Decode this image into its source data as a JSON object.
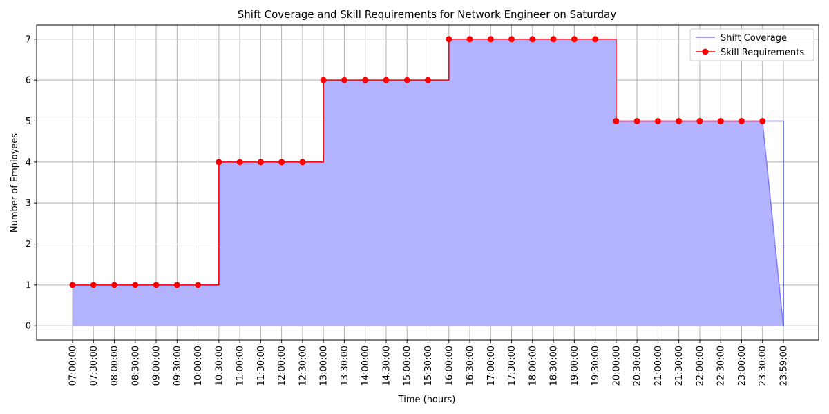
{
  "chart_data": {
    "type": "area",
    "title": "Shift Coverage and Skill Requirements for Network Engineer on Saturday",
    "xlabel": "Time (hours)",
    "ylabel": "Number of Employees",
    "x_ticks": [
      "07:00:00",
      "07:30:00",
      "08:00:00",
      "08:30:00",
      "09:00:00",
      "09:30:00",
      "10:00:00",
      "10:30:00",
      "11:00:00",
      "11:30:00",
      "12:00:00",
      "12:30:00",
      "13:00:00",
      "13:30:00",
      "14:00:00",
      "14:30:00",
      "15:00:00",
      "15:30:00",
      "16:00:00",
      "16:30:00",
      "17:00:00",
      "17:30:00",
      "18:00:00",
      "18:30:00",
      "19:00:00",
      "19:30:00",
      "20:00:00",
      "20:30:00",
      "21:00:00",
      "21:30:00",
      "22:00:00",
      "22:30:00",
      "23:00:00",
      "23:30:00",
      "23:59:00"
    ],
    "y_ticks": [
      0,
      1,
      2,
      3,
      4,
      5,
      6,
      7
    ],
    "ylim": [
      -0.35,
      7.35
    ],
    "grid": true,
    "legend_position": "top-right",
    "series": [
      {
        "name": "Shift Coverage",
        "kind": "filled-step-area",
        "color": "#0000ff",
        "fill_color": "#b2b2ff",
        "x": [
          "07:00:00",
          "07:30:00",
          "08:00:00",
          "08:30:00",
          "09:00:00",
          "09:30:00",
          "10:00:00",
          "10:30:00",
          "11:00:00",
          "11:30:00",
          "12:00:00",
          "12:30:00",
          "13:00:00",
          "13:30:00",
          "14:00:00",
          "14:30:00",
          "15:00:00",
          "15:30:00",
          "16:00:00",
          "16:30:00",
          "17:00:00",
          "17:30:00",
          "18:00:00",
          "18:30:00",
          "19:00:00",
          "19:30:00",
          "20:00:00",
          "20:30:00",
          "21:00:00",
          "21:30:00",
          "22:00:00",
          "22:30:00",
          "23:00:00",
          "23:30:00",
          "23:59:00"
        ],
        "values": [
          1,
          1,
          1,
          1,
          1,
          1,
          1,
          4,
          4,
          4,
          4,
          4,
          6,
          6,
          6,
          6,
          6,
          6,
          7,
          7,
          7,
          7,
          7,
          7,
          7,
          7,
          5,
          5,
          5,
          5,
          5,
          5,
          5,
          5,
          0
        ]
      },
      {
        "name": "Skill Requirements",
        "kind": "step-line-markers",
        "color": "#ff0000",
        "x": [
          "07:00:00",
          "07:30:00",
          "08:00:00",
          "08:30:00",
          "09:00:00",
          "09:30:00",
          "10:00:00",
          "10:30:00",
          "11:00:00",
          "11:30:00",
          "12:00:00",
          "12:30:00",
          "13:00:00",
          "13:30:00",
          "14:00:00",
          "14:30:00",
          "15:00:00",
          "15:30:00",
          "16:00:00",
          "16:30:00",
          "17:00:00",
          "17:30:00",
          "18:00:00",
          "18:30:00",
          "19:00:00",
          "19:30:00",
          "20:00:00",
          "20:30:00",
          "21:00:00",
          "21:30:00",
          "22:00:00",
          "22:30:00",
          "23:00:00",
          "23:30:00"
        ],
        "values": [
          1,
          1,
          1,
          1,
          1,
          1,
          1,
          4,
          4,
          4,
          4,
          4,
          6,
          6,
          6,
          6,
          6,
          6,
          7,
          7,
          7,
          7,
          7,
          7,
          7,
          7,
          5,
          5,
          5,
          5,
          5,
          5,
          5,
          5
        ]
      }
    ]
  }
}
